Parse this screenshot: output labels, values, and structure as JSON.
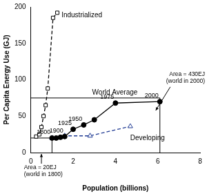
{
  "chart_data": {
    "type": "line",
    "xlabel": "Population (billions)",
    "ylabel": "Per Capita Energy Use (GJ)",
    "xlim": [
      0,
      8
    ],
    "xticks": [
      0,
      2,
      4,
      6,
      8
    ],
    "ylim": [
      0,
      200
    ],
    "yticks": [
      0,
      50,
      100,
      150,
      200
    ],
    "grid": false,
    "series": [
      {
        "color": "#000000",
        "marker": "open_square",
        "line_style": "dashed",
        "x": [
          0.25,
          0.4,
          0.5,
          0.6,
          0.7,
          0.8,
          1.05,
          1.25
        ],
        "values": [
          22,
          25,
          35,
          50,
          65,
          88,
          185,
          192
        ]
      },
      {
        "color": "#000000",
        "marker": "filled_circle",
        "line_style": "solid",
        "x": [
          1.0,
          1.2,
          1.4,
          1.6,
          2.0,
          2.5,
          3.0,
          4.0,
          6.1
        ],
        "values": [
          20,
          20,
          21,
          22,
          32,
          38,
          45,
          68,
          70
        ],
        "point_labels": [
          "1800",
          null,
          null,
          "1900",
          "1925",
          "1950",
          null,
          "1975",
          "2000"
        ]
      },
      {
        "color": "#1f3a93",
        "marker": "open_triangle",
        "line_style": "dashed",
        "x": [
          1.0,
          1.6,
          2.8,
          4.7
        ],
        "values": [
          20,
          23,
          23,
          36
        ]
      }
    ],
    "annotations": [
      {
        "text": "Industrialized",
        "x": 1.45,
        "y": 188
      },
      {
        "text": "World Average",
        "x": 2.9,
        "y": 82
      },
      {
        "text": "Developing",
        "x": 4.7,
        "y": 20
      }
    ],
    "areas": [
      {
        "x": 1.0,
        "y": 20,
        "label": [
          "Area = 20EJ",
          "(world in 1800)"
        ]
      },
      {
        "x": 6.1,
        "y": 75,
        "label": [
          "Area = 430EJ",
          "(world in 2000)"
        ]
      }
    ]
  }
}
